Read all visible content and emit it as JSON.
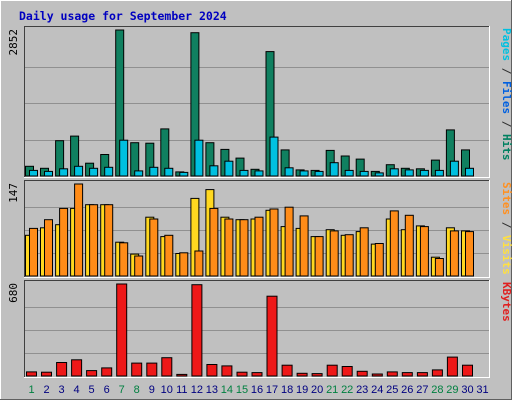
{
  "chart_data": {
    "type": "bar",
    "title": "Daily usage for September 2024",
    "categories": [
      "1",
      "2",
      "3",
      "4",
      "5",
      "6",
      "7",
      "8",
      "9",
      "10",
      "11",
      "12",
      "13",
      "14",
      "15",
      "16",
      "17",
      "18",
      "19",
      "20",
      "21",
      "22",
      "23",
      "24",
      "25",
      "26",
      "27",
      "28",
      "29",
      "30",
      "31"
    ],
    "weekend_days": [
      "1",
      "7",
      "8",
      "14",
      "15",
      "21",
      "22",
      "28",
      "29"
    ],
    "panels": [
      {
        "id": "hits",
        "scale_label": "2852",
        "ylim": [
          0,
          2852
        ],
        "right_labels": [
          {
            "text": "Pages",
            "color": "#00c0e0"
          },
          {
            "text": " / ",
            "color": "#303030"
          },
          {
            "text": "Files",
            "color": "#0060e0"
          },
          {
            "text": " / ",
            "color": "#303030"
          },
          {
            "text": "Hits",
            "color": "#008060"
          }
        ],
        "series": [
          {
            "name": "Hits",
            "color": "#108060",
            "values": [
              190,
              150,
              690,
              780,
              250,
              420,
              2852,
              650,
              640,
              920,
              80,
              2800,
              650,
              520,
              350,
              130,
              2430,
              510,
              120,
              110,
              500,
              390,
              330,
              90,
              220,
              150,
              140,
              310,
              900,
              510,
              0
            ]
          },
          {
            "name": "Files",
            "color": "#00c0e0",
            "values": [
              110,
              90,
              140,
              190,
              150,
              170,
              700,
              100,
              170,
              150,
              70,
              700,
              200,
              290,
              110,
              100,
              760,
              160,
              100,
              90,
              260,
              110,
              90,
              60,
              140,
              120,
              110,
              110,
              290,
              150,
              0
            ]
          }
        ]
      },
      {
        "id": "visits",
        "scale_label": "147",
        "ylim": [
          0,
          147
        ],
        "right_labels": [
          {
            "text": "Sites",
            "color": "#ff9020"
          },
          {
            "text": " / ",
            "color": "#303030"
          },
          {
            "text": "Visits",
            "color": "#ffe040"
          }
        ],
        "series": [
          {
            "name": "Visits",
            "color": "#ffd820",
            "values": [
              65,
              77,
              82,
              108,
              114,
              114,
              54,
              35,
              94,
              63,
              36,
              124,
              138,
              94,
              90,
              91,
              105,
              79,
              76,
              63,
              74,
              65,
              71,
              51,
              91,
              74,
              80,
              30,
              77,
              72,
              0
            ]
          },
          {
            "name": "Sites",
            "color": "#ff8c18",
            "values": [
              76,
              90,
              108,
              147,
              114,
              114,
              53,
              32,
              91,
              65,
              37,
              40,
              108,
              91,
              90,
              94,
              107,
              110,
              96,
              63,
              72,
              66,
              77,
              52,
              104,
              97,
              79,
              28,
              72,
              71,
              0
            ]
          }
        ]
      },
      {
        "id": "kbytes",
        "scale_label": "680",
        "ylim": [
          0,
          680
        ],
        "right_labels": [
          {
            "text": "KBytes",
            "color": "#e02020"
          }
        ],
        "series": [
          {
            "name": "KBytes",
            "color": "#ee1818",
            "values": [
              30,
              28,
              100,
              120,
              40,
              60,
              680,
              95,
              95,
              135,
              12,
              675,
              85,
              75,
              28,
              25,
              590,
              80,
              20,
              18,
              80,
              70,
              35,
              15,
              30,
              25,
              25,
              45,
              140,
              80,
              0
            ]
          }
        ]
      }
    ],
    "colors": {
      "background": "#c0c0c0",
      "title": "#0000c0",
      "day_label": "#000080",
      "weekend_label": "#008040",
      "gridline": "#909090"
    }
  }
}
